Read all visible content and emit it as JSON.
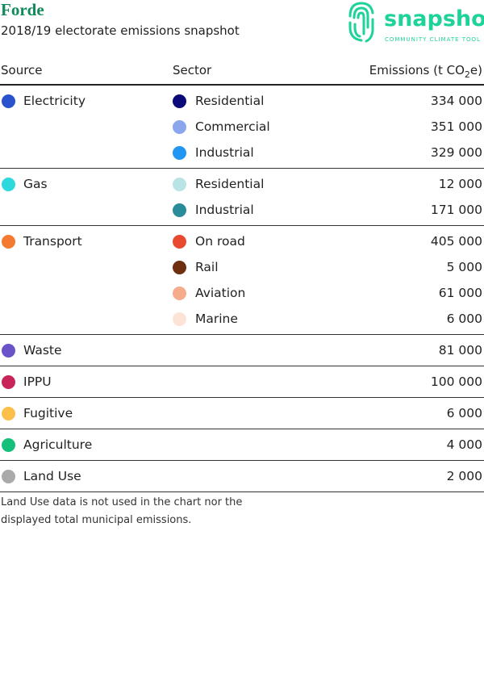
{
  "header": {
    "title": "Forde",
    "subtitle": "2018/19 electorate emissions snapshot",
    "logo_text": "snapshot",
    "logo_tagline": "COMMUNITY CLIMATE TOOL"
  },
  "table": {
    "columns": {
      "source": "Source",
      "sector": "Sector",
      "emissions": [
        "Emissions (t CO",
        "2",
        "e)"
      ]
    },
    "groups": [
      {
        "source": "Electricity",
        "color": "#2a52cc",
        "sectors": [
          {
            "name": "Residential",
            "color": "#0a0a78",
            "value": "334 000"
          },
          {
            "name": "Commercial",
            "color": "#8ca6ee",
            "value": "351 000"
          },
          {
            "name": "Industrial",
            "color": "#2196f3",
            "value": "329 000"
          }
        ]
      },
      {
        "source": "Gas",
        "color": "#2ed9de",
        "sectors": [
          {
            "name": "Residential",
            "color": "#b9e3e5",
            "value": "12 000"
          },
          {
            "name": "Industrial",
            "color": "#2a8c99",
            "value": "171 000"
          }
        ]
      },
      {
        "source": "Transport",
        "color": "#f37a30",
        "sectors": [
          {
            "name": "On road",
            "color": "#e84a2f",
            "value": "405 000"
          },
          {
            "name": "Rail",
            "color": "#6e2e10",
            "value": "5 000"
          },
          {
            "name": "Aviation",
            "color": "#f5ab8c",
            "value": "61 000"
          },
          {
            "name": "Marine",
            "color": "#fde3d6",
            "value": "6 000"
          }
        ]
      },
      {
        "source": "Waste",
        "color": "#6a52c8",
        "value": "81 000"
      },
      {
        "source": "IPPU",
        "color": "#c8245a",
        "value": "100 000"
      },
      {
        "source": "Fugitive",
        "color": "#fbbf4a",
        "value": "6 000"
      },
      {
        "source": "Agriculture",
        "color": "#14c07a",
        "value": "4 000"
      },
      {
        "source": "Land Use",
        "color": "#aaaaaa",
        "value": "2 000"
      }
    ]
  },
  "footnote": "Land Use data is not used in the chart nor the displayed total municipal emissions."
}
